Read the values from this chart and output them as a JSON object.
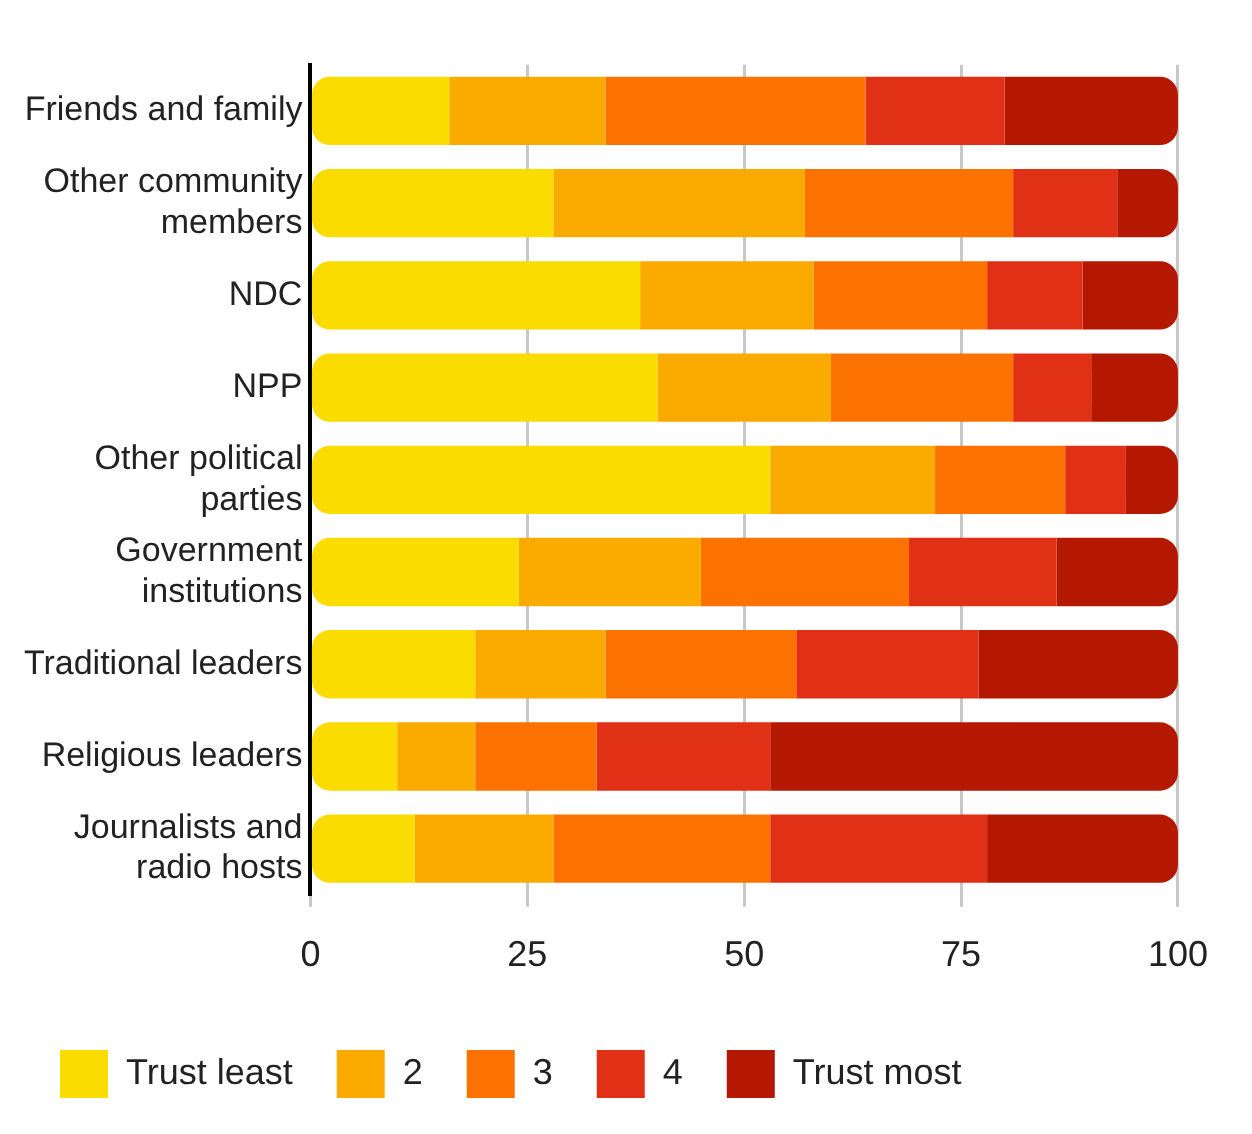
{
  "chart_data": {
    "type": "bar",
    "orientation": "horizontal",
    "stacked": true,
    "categories": [
      "Friends and family",
      "Other community members",
      "NDC",
      "NPP",
      "Other political parties",
      "Government institutions",
      "Traditional leaders",
      "Religious leaders",
      "Journalists and radio hosts"
    ],
    "series": [
      {
        "name": "Trust least",
        "color": "#fbdc00",
        "values": [
          16,
          28,
          38,
          40,
          53,
          24,
          19,
          10,
          12
        ]
      },
      {
        "name": "2",
        "color": "#fbab00",
        "values": [
          18,
          29,
          20,
          20,
          19,
          21,
          15,
          9,
          16
        ]
      },
      {
        "name": "3",
        "color": "#fb7200",
        "values": [
          30,
          24,
          20,
          21,
          15,
          24,
          22,
          14,
          25
        ]
      },
      {
        "name": "4",
        "color": "#e03117",
        "values": [
          16,
          12,
          11,
          9,
          7,
          17,
          21,
          20,
          25
        ]
      },
      {
        "name": "Trust most",
        "color": "#b41800",
        "values": [
          20,
          7,
          11,
          10,
          6,
          14,
          23,
          47,
          22
        ]
      }
    ],
    "xlim": [
      0,
      100
    ],
    "xticks": [
      0,
      25,
      50,
      75,
      100
    ],
    "grid": "x",
    "legend": "bottom"
  }
}
